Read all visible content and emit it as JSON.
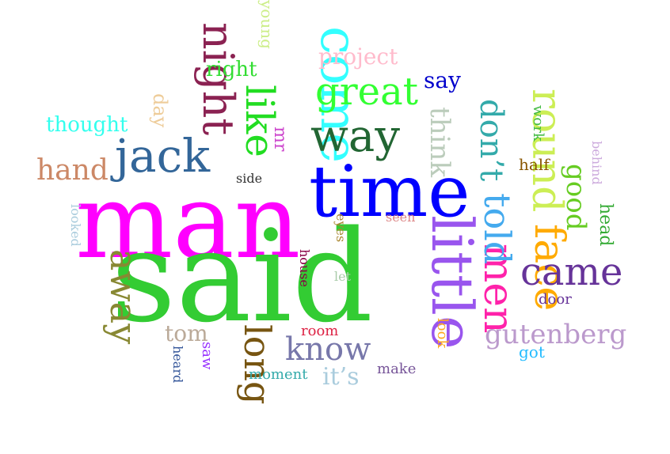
{
  "words": [
    {
      "text": "man",
      "color": "#ff00ff"
    },
    {
      "text": "said",
      "color": "#33cc33"
    },
    {
      "text": "time",
      "color": "#0000ff"
    },
    {
      "text": "come",
      "color": "#33ffff"
    },
    {
      "text": "little",
      "color": "#9955ee"
    },
    {
      "text": "night",
      "color": "#8b2252"
    },
    {
      "text": "like",
      "color": "#22dd22"
    },
    {
      "text": "jack",
      "color": "#336699"
    },
    {
      "text": "way",
      "color": "#226633"
    },
    {
      "text": "great",
      "color": "#33ff33"
    },
    {
      "text": "round",
      "color": "#ccee55"
    },
    {
      "text": "face",
      "color": "#ffaa00"
    },
    {
      "text": "men",
      "color": "#ff22aa"
    },
    {
      "text": "told",
      "color": "#44aaee"
    },
    {
      "text": "don’t",
      "color": "#33aaaa"
    },
    {
      "text": "came",
      "color": "#663399"
    },
    {
      "text": "away",
      "color": "#888833"
    },
    {
      "text": "long",
      "color": "#775511"
    },
    {
      "text": "know",
      "color": "#7777aa"
    },
    {
      "text": "hand",
      "color": "#cc8866"
    },
    {
      "text": "good",
      "color": "#66cc22"
    },
    {
      "text": "think",
      "color": "#bbccbb"
    },
    {
      "text": "project",
      "color": "#ffbbcc"
    },
    {
      "text": "gutenberg",
      "color": "#bb99cc"
    },
    {
      "text": "say",
      "color": "#0000cc"
    },
    {
      "text": "right",
      "color": "#33dd33"
    },
    {
      "text": "thought",
      "color": "#33ffee"
    },
    {
      "text": "day",
      "color": "#eecc99"
    },
    {
      "text": "mr",
      "color": "#cc44cc"
    },
    {
      "text": "young",
      "color": "#ccee88"
    },
    {
      "text": "tom",
      "color": "#bbaa99"
    },
    {
      "text": "it’s",
      "color": "#aaccdd"
    },
    {
      "text": "head",
      "color": "#33aa33"
    },
    {
      "text": "work",
      "color": "#44bb44"
    },
    {
      "text": "half",
      "color": "#885500"
    },
    {
      "text": "behind",
      "color": "#ccaadd"
    },
    {
      "text": "door",
      "color": "#663399"
    },
    {
      "text": "side",
      "color": "#333333"
    },
    {
      "text": "looked",
      "color": "#aaccdd"
    },
    {
      "text": "eyes",
      "color": "#aa8833"
    },
    {
      "text": "seen",
      "color": "#dd8888"
    },
    {
      "text": "house",
      "color": "#880044"
    },
    {
      "text": "let",
      "color": "#aaccaa"
    },
    {
      "text": "room",
      "color": "#dd2244"
    },
    {
      "text": "look",
      "color": "#ffaa22"
    },
    {
      "text": "got",
      "color": "#22bbff"
    },
    {
      "text": "saw",
      "color": "#9933ff"
    },
    {
      "text": "heard",
      "color": "#335599"
    },
    {
      "text": "moment",
      "color": "#33aaaa"
    },
    {
      "text": "make",
      "color": "#775599"
    }
  ]
}
